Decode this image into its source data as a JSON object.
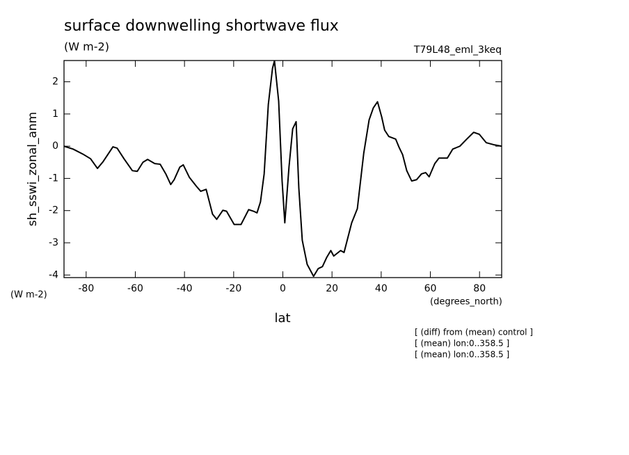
{
  "chart_data": {
    "type": "line",
    "title": "surface downwelling shortwave flux",
    "subtitle": "(W m-2)",
    "annotation_right": "T79L48_eml_3keq",
    "y_label": "sh_sswi_zonal_anm",
    "y_units": "(W m-2)",
    "x_label": "lat",
    "x_units": "(degrees_north)",
    "notes": [
      "[ (diff) from (mean) control ]",
      "[ (mean) lon:0..358.5 ]",
      "[ (mean) lon:0..358.5 ]"
    ],
    "xlim": [
      -89,
      89
    ],
    "ylim": [
      -4.08,
      2.66
    ],
    "xticks": [
      -80,
      -60,
      -40,
      -20,
      0,
      20,
      40,
      60,
      80
    ],
    "yticks": [
      -4,
      -3,
      -2,
      -1,
      0,
      1,
      2
    ],
    "series": [
      {
        "color": "#000000",
        "x": [
          -89,
          -85.3,
          -81,
          -78.2,
          -75.4,
          -73.1,
          -69.1,
          -67.4,
          -64.6,
          -61.2,
          -59.2,
          -56.9,
          -55.0,
          -52.1,
          -49.9,
          -47.6,
          -45.6,
          -44.2,
          -41.9,
          -40.5,
          -38.0,
          -35.1,
          -33.4,
          -31.2,
          -28.6,
          -26.9,
          -24.4,
          -22.9,
          -19.8,
          -17.0,
          -13.9,
          -11.9,
          -10.5,
          -9.1,
          -7.6,
          -5.9,
          -4.2,
          -3.4,
          -1.7,
          -0.3,
          0.8,
          2.5,
          4.0,
          5.4,
          6.5,
          7.9,
          9.9,
          12.5,
          14.4,
          16.1,
          17.8,
          19.5,
          20.7,
          23.5,
          24.9,
          28.0,
          30.3,
          32.9,
          35.1,
          36.8,
          38.5,
          40.2,
          41.4,
          43.1,
          45.9,
          47.3,
          48.7,
          50.4,
          52.4,
          54.4,
          56.4,
          58.1,
          59.5,
          61.8,
          63.5,
          66.9,
          69.1,
          72.0,
          74.8,
          77.6,
          79.9,
          82.7,
          86.1,
          89.0
        ],
        "values": [
          0,
          -0.09,
          -0.26,
          -0.39,
          -0.69,
          -0.48,
          -0.02,
          -0.06,
          -0.39,
          -0.76,
          -0.78,
          -0.5,
          -0.41,
          -0.54,
          -0.56,
          -0.86,
          -1.19,
          -1.04,
          -0.65,
          -0.58,
          -0.97,
          -1.25,
          -1.4,
          -1.34,
          -2.11,
          -2.27,
          -1.99,
          -2.02,
          -2.43,
          -2.43,
          -1.97,
          -2.02,
          -2.07,
          -1.73,
          -0.86,
          1.3,
          2.42,
          2.65,
          1.4,
          -1.08,
          -2.38,
          -0.65,
          0.54,
          0.76,
          -1.3,
          -2.92,
          -3.67,
          -4.04,
          -3.8,
          -3.74,
          -3.46,
          -3.24,
          -3.41,
          -3.24,
          -3.3,
          -2.38,
          -1.94,
          -0.22,
          0.82,
          1.19,
          1.38,
          0.91,
          0.5,
          0.3,
          0.22,
          -0.04,
          -0.26,
          -0.76,
          -1.08,
          -1.04,
          -0.86,
          -0.82,
          -0.95,
          -0.54,
          -0.37,
          -0.37,
          -0.09,
          0,
          0.22,
          0.43,
          0.37,
          0.11,
          0.04,
          0
        ]
      }
    ]
  }
}
